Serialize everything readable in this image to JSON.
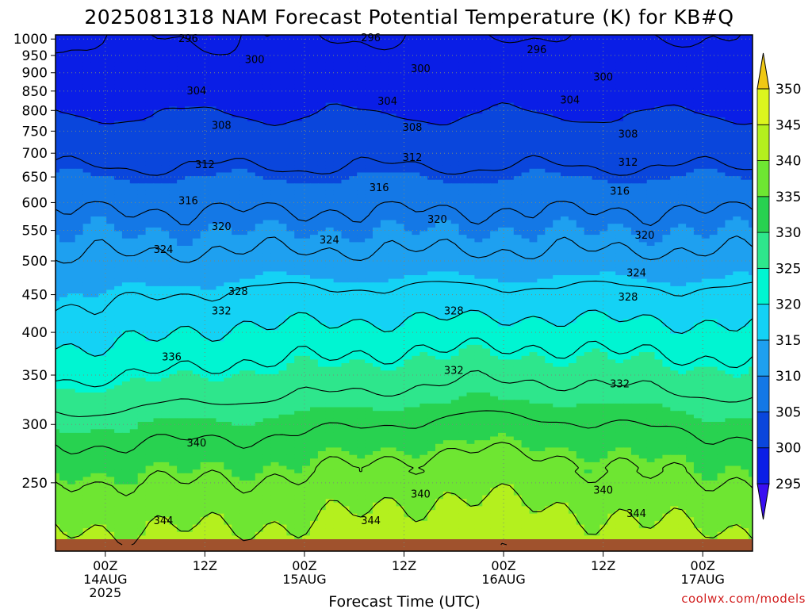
{
  "chart_data": {
    "type": "heatmap",
    "title": "2025081318 NAM Forecast Potential Temperature (K) for KB#Q",
    "xlabel": "Forecast Time (UTC)",
    "ylabel": "",
    "units": "K",
    "credit": "coolwx.com/models",
    "x_ticks": [
      {
        "hour": 6,
        "lines": [
          "00Z",
          "14AUG",
          "2025"
        ]
      },
      {
        "hour": 18,
        "lines": [
          "12Z"
        ]
      },
      {
        "hour": 30,
        "lines": [
          "00Z",
          "15AUG"
        ]
      },
      {
        "hour": 42,
        "lines": [
          "12Z"
        ]
      },
      {
        "hour": 54,
        "lines": [
          "00Z",
          "16AUG"
        ]
      },
      {
        "hour": 66,
        "lines": [
          "12Z"
        ]
      },
      {
        "hour": 78,
        "lines": [
          "00Z",
          "17AUG"
        ]
      }
    ],
    "xlim": [
      0,
      84
    ],
    "y_ticks": [
      250,
      300,
      350,
      400,
      450,
      500,
      550,
      600,
      650,
      700,
      750,
      800,
      850,
      900,
      950,
      1000
    ],
    "ylim_hpa": [
      1013,
      206
    ],
    "colorbar": {
      "levels": [
        295,
        300,
        305,
        310,
        315,
        320,
        325,
        330,
        335,
        340,
        345,
        350
      ],
      "colors": [
        "#3a0ff2",
        "#0a1ee6",
        "#0a46dc",
        "#1478e6",
        "#1ea0f0",
        "#14d2f5",
        "#00f5d2",
        "#2ee68c",
        "#28d250",
        "#6ee632",
        "#b4f01e",
        "#dcf51e",
        "#f8f000",
        "#f0c814"
      ]
    },
    "contour_interval": 4,
    "contour_levels": [
      296,
      300,
      304,
      308,
      312,
      316,
      320,
      324,
      328,
      332,
      336,
      340,
      344,
      348
    ],
    "contour_labels": [
      {
        "value": 344,
        "hour": 13,
        "hpa": 222
      },
      {
        "value": 344,
        "hour": 38,
        "hpa": 222
      },
      {
        "value": 344,
        "hour": 70,
        "hpa": 227
      },
      {
        "value": 340,
        "hour": 44,
        "hpa": 241
      },
      {
        "value": 340,
        "hour": 66,
        "hpa": 244
      },
      {
        "value": 340,
        "hour": 17,
        "hpa": 283
      },
      {
        "value": 336,
        "hour": 14,
        "hpa": 370
      },
      {
        "value": 332,
        "hour": 48,
        "hpa": 355
      },
      {
        "value": 332,
        "hour": 68,
        "hpa": 340
      },
      {
        "value": 332,
        "hour": 20,
        "hpa": 427
      },
      {
        "value": 328,
        "hour": 48,
        "hpa": 427
      },
      {
        "value": 328,
        "hour": 69,
        "hpa": 446
      },
      {
        "value": 328,
        "hour": 22,
        "hpa": 454
      },
      {
        "value": 324,
        "hour": 70,
        "hpa": 481
      },
      {
        "value": 324,
        "hour": 13,
        "hpa": 518
      },
      {
        "value": 324,
        "hour": 33,
        "hpa": 533
      },
      {
        "value": 320,
        "hour": 71,
        "hpa": 541
      },
      {
        "value": 320,
        "hour": 20,
        "hpa": 556
      },
      {
        "value": 320,
        "hour": 46,
        "hpa": 569
      },
      {
        "value": 316,
        "hour": 16,
        "hpa": 603
      },
      {
        "value": 316,
        "hour": 39,
        "hpa": 628
      },
      {
        "value": 316,
        "hour": 68,
        "hpa": 621
      },
      {
        "value": 312,
        "hour": 18,
        "hpa": 675
      },
      {
        "value": 312,
        "hour": 43,
        "hpa": 690
      },
      {
        "value": 312,
        "hour": 69,
        "hpa": 680
      },
      {
        "value": 308,
        "hour": 20,
        "hpa": 763
      },
      {
        "value": 308,
        "hour": 43,
        "hpa": 758
      },
      {
        "value": 308,
        "hour": 69,
        "hpa": 742
      },
      {
        "value": 304,
        "hour": 17,
        "hpa": 850
      },
      {
        "value": 304,
        "hour": 40,
        "hpa": 823
      },
      {
        "value": 304,
        "hour": 62,
        "hpa": 826
      },
      {
        "value": 300,
        "hour": 24,
        "hpa": 937
      },
      {
        "value": 300,
        "hour": 44,
        "hpa": 911
      },
      {
        "value": 300,
        "hour": 66,
        "hpa": 887
      },
      {
        "value": 296,
        "hour": 58,
        "hpa": 967
      },
      {
        "value": 296,
        "hour": 16,
        "hpa": 1000
      },
      {
        "value": 296,
        "hour": 38,
        "hpa": 1003
      }
    ]
  }
}
